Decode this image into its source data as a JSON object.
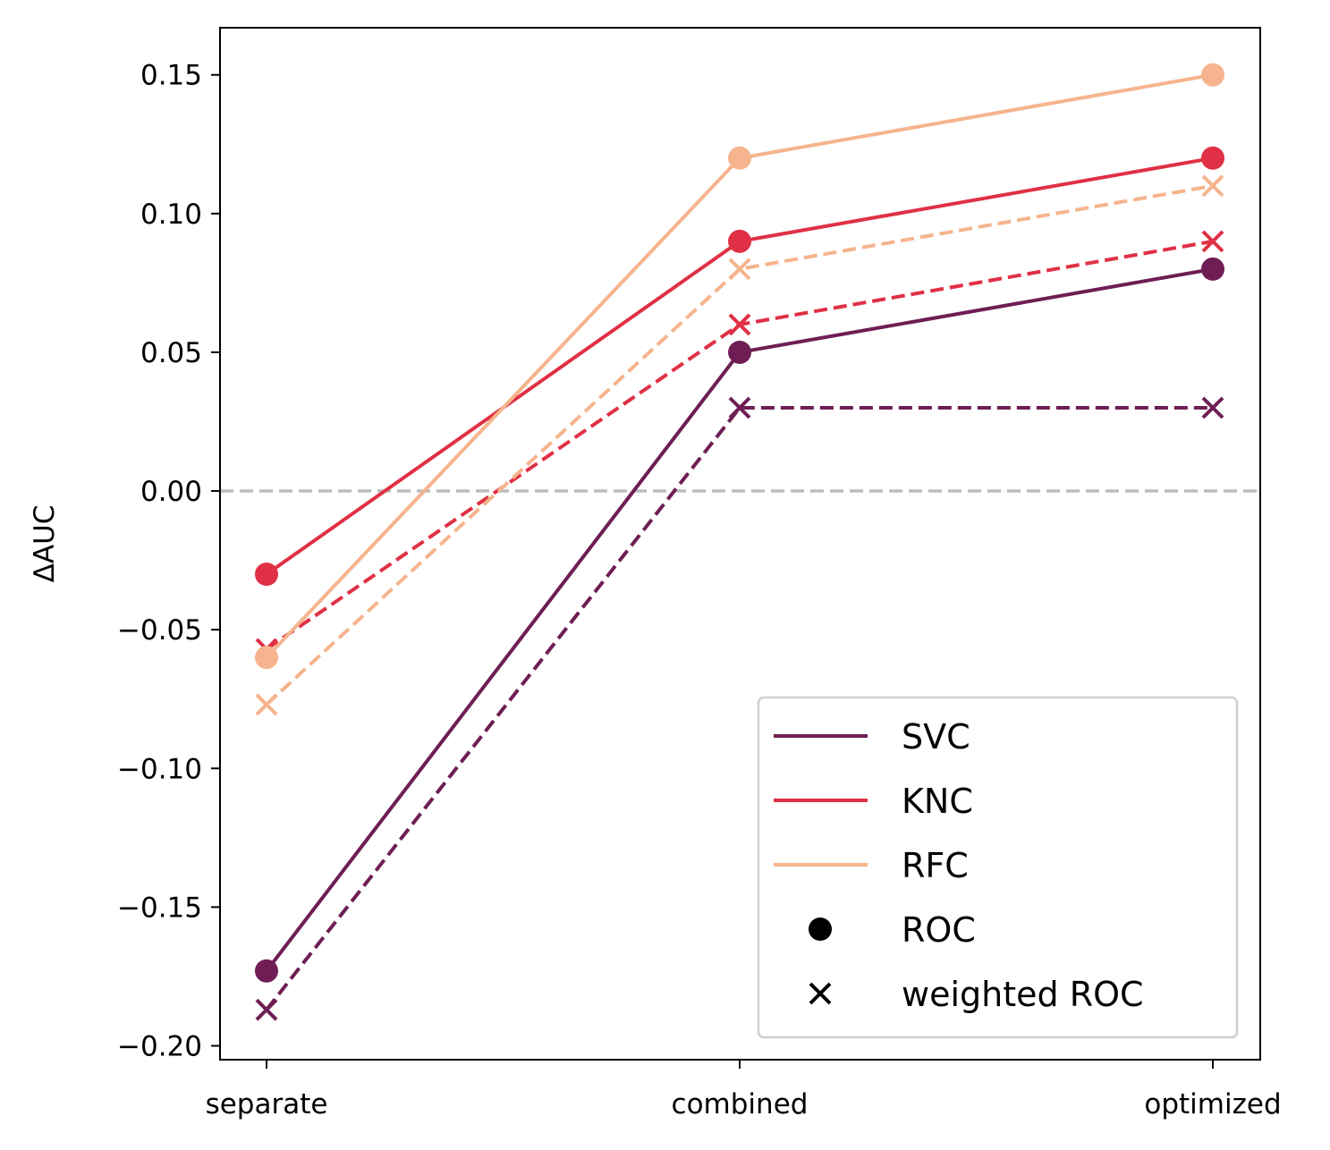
{
  "chart_data": {
    "type": "line",
    "title": "",
    "xlabel": "",
    "ylabel": "ΔAUC",
    "categories": [
      "separate",
      "combined",
      "optimized"
    ],
    "ylim": [
      -0.205,
      0.167
    ],
    "yticks": [
      -0.2,
      -0.15,
      -0.1,
      -0.05,
      0.0,
      0.05,
      0.1,
      0.15
    ],
    "ytick_labels": [
      "−0.20",
      "−0.15",
      "−0.10",
      "−0.05",
      "0.00",
      "0.05",
      "0.10",
      "0.15"
    ],
    "reference_line": {
      "y": 0.0,
      "color": "#bdbdbd",
      "style": "dashed"
    },
    "grid": false,
    "legend_position": "lower-right",
    "series": [
      {
        "name": "SVC",
        "metric": "ROC",
        "color": "#6e1e54",
        "style": "solid",
        "marker": "circle",
        "values": [
          -0.173,
          0.05,
          0.08
        ]
      },
      {
        "name": "SVC",
        "metric": "weighted ROC",
        "color": "#6e1e54",
        "style": "dashed",
        "marker": "x",
        "values": [
          -0.187,
          0.03,
          0.03
        ]
      },
      {
        "name": "KNC",
        "metric": "ROC",
        "color": "#e03045",
        "style": "solid",
        "marker": "circle",
        "values": [
          -0.03,
          0.09,
          0.12
        ]
      },
      {
        "name": "KNC",
        "metric": "weighted ROC",
        "color": "#e03045",
        "style": "dashed",
        "marker": "x",
        "values": [
          -0.057,
          0.06,
          0.09
        ]
      },
      {
        "name": "RFC",
        "metric": "ROC",
        "color": "#f5b48d",
        "style": "solid",
        "marker": "circle",
        "values": [
          -0.06,
          0.12,
          0.15
        ]
      },
      {
        "name": "RFC",
        "metric": "weighted ROC",
        "color": "#f5b48d",
        "style": "dashed",
        "marker": "x",
        "values": [
          -0.077,
          0.08,
          0.11
        ]
      }
    ],
    "legend": [
      {
        "label": "SVC",
        "kind": "line",
        "color": "#6e1e54"
      },
      {
        "label": "KNC",
        "kind": "line",
        "color": "#e03045"
      },
      {
        "label": "RFC",
        "kind": "line",
        "color": "#f5b48d"
      },
      {
        "label": "ROC",
        "kind": "circle",
        "color": "#000000"
      },
      {
        "label": "weighted ROC",
        "kind": "x",
        "color": "#000000"
      }
    ]
  }
}
